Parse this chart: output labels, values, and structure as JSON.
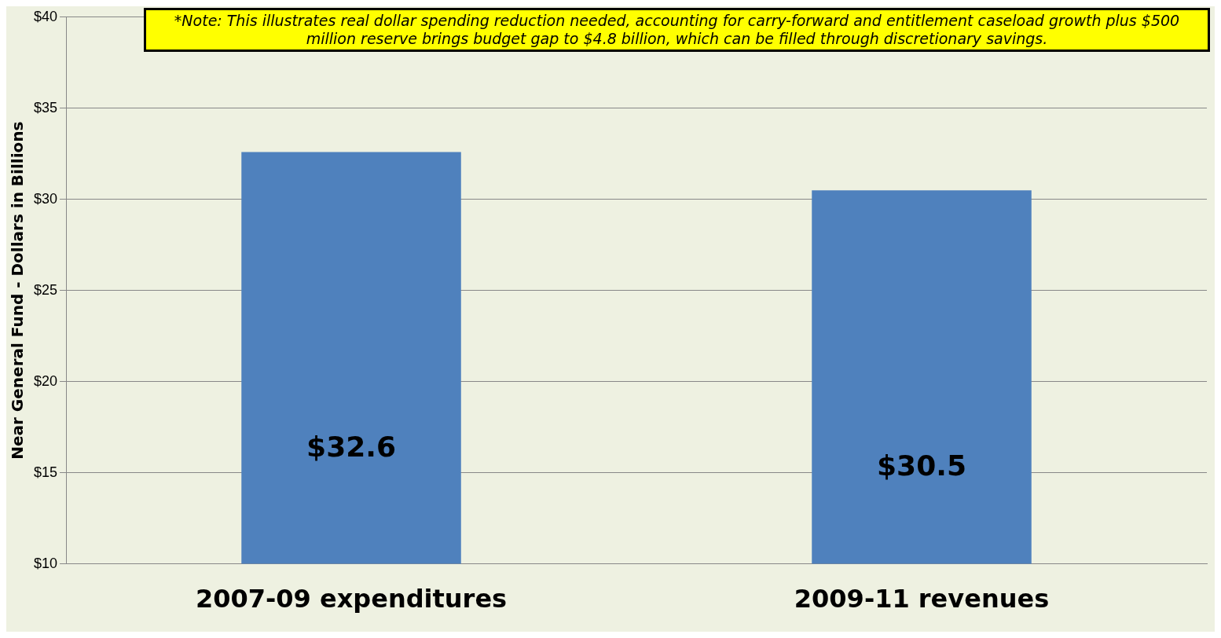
{
  "chart_data": {
    "type": "bar",
    "ylabel": "Near General Fund - Dollars in Billions",
    "categories": [
      "2007-09 expenditures",
      "2009-11 revenues"
    ],
    "values": [
      32.6,
      30.5
    ],
    "color": "#4f81bd",
    "value_labels": [
      "$32.6",
      "$30.5"
    ],
    "ylim": [
      10,
      40
    ],
    "yticks": [
      {
        "value": 10,
        "label": "$10"
      },
      {
        "value": 15,
        "label": "$15"
      },
      {
        "value": 20,
        "label": "$20"
      },
      {
        "value": 25,
        "label": "$25"
      },
      {
        "value": 30,
        "label": "$30"
      },
      {
        "value": 35,
        "label": "$35"
      },
      {
        "value": 40,
        "label": "$40"
      }
    ],
    "grid": "y",
    "annotations": [
      "*Note: This illustrates real dollar spending reduction needed, accounting for carry-forward and entitlement caseload growth plus $500 million reserve brings budget gap to $4.8 billion, which can be filled through discretionary savings."
    ]
  }
}
